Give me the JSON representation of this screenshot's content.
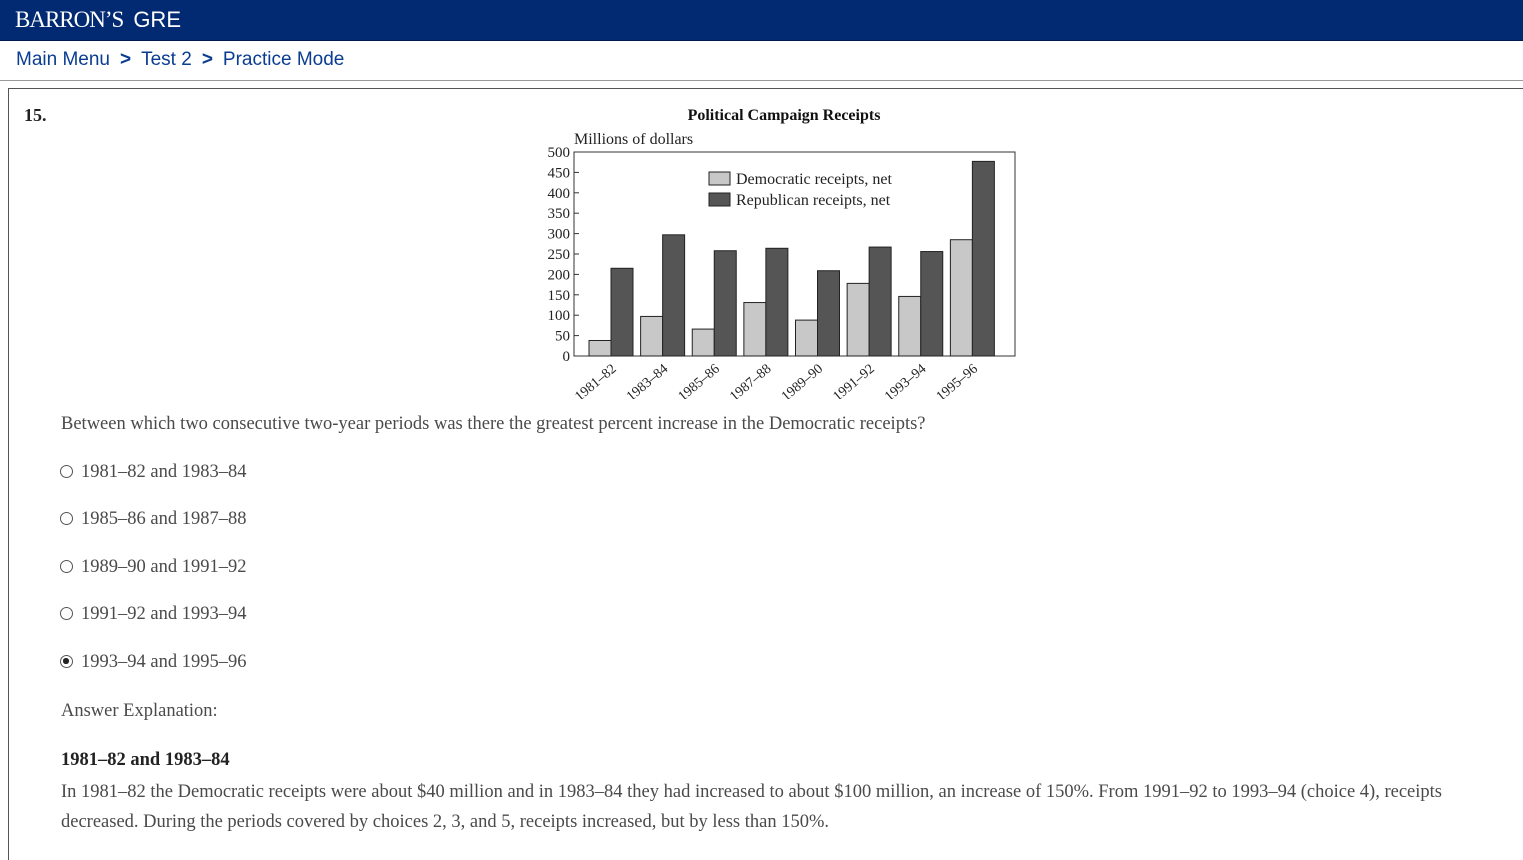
{
  "header": {
    "brand_primary": "BARRON’S",
    "brand_secondary": "GRE",
    "bar_color": "#022a73"
  },
  "breadcrumb": {
    "items": [
      "Main Menu",
      "Test 2",
      "Practice Mode"
    ],
    "separator": ">"
  },
  "question": {
    "number": "15.",
    "text": "Between which two consecutive two-year periods was there the greatest percent increase in the Democratic receipts?",
    "options": [
      {
        "label": "1981–82 and 1983–84",
        "selected": false
      },
      {
        "label": "1985–86 and 1987–88",
        "selected": false
      },
      {
        "label": "1989–90 and 1991–92",
        "selected": false
      },
      {
        "label": "1991–92 and 1993–94",
        "selected": false
      },
      {
        "label": "1993–94 and 1995–96",
        "selected": true
      }
    ]
  },
  "explanation": {
    "label": "Answer Explanation:",
    "title": "1981–82 and 1983–84",
    "text": "In 1981–82 the Democratic receipts were about $40 million and in 1983–84 they had increased to about $100 million, an increase of 150%. From 1991–92 to 1993–94 (choice 4), receipts decreased. During the periods covered by choices 2, 3, and 5, receipts increased, but by less than 150%."
  },
  "chart_data": {
    "type": "bar",
    "title": "Political Campaign Receipts",
    "ylabel": "Millions of dollars",
    "xlabel": "",
    "categories": [
      "1981–82",
      "1983–84",
      "1985–86",
      "1987–88",
      "1989–90",
      "1991–92",
      "1993–94",
      "1995–96"
    ],
    "series": [
      {
        "name": "Democratic receipts, net",
        "color": "#c8c8c8",
        "values": [
          38,
          97,
          66,
          131,
          88,
          178,
          146,
          285
        ]
      },
      {
        "name": "Republican receipts, net",
        "color": "#555555",
        "values": [
          215,
          297,
          258,
          264,
          209,
          267,
          256,
          477
        ]
      }
    ],
    "ylim": [
      0,
      500
    ],
    "yticks": [
      0,
      50,
      100,
      150,
      200,
      250,
      300,
      350,
      400,
      450,
      500
    ],
    "legend_position": "top-center",
    "grid": false
  }
}
